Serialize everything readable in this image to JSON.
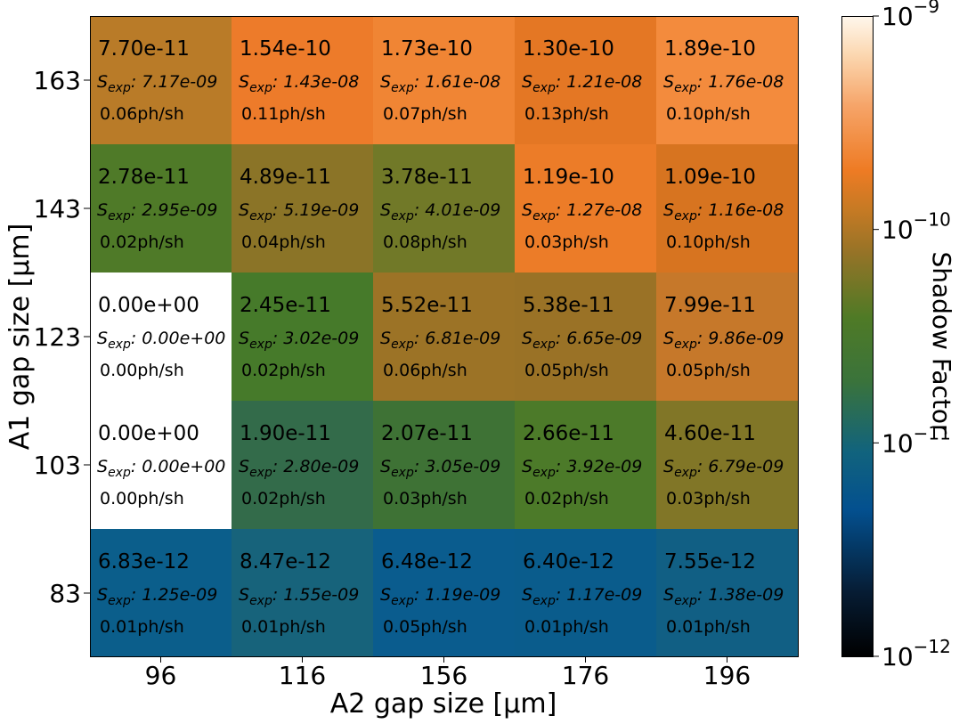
{
  "chart_data": {
    "type": "heatmap",
    "xlabel": "A2 gap size [µm]",
    "ylabel": "A1 gap size [µm]",
    "x_categories": [
      "96",
      "116",
      "156",
      "176",
      "196"
    ],
    "y_categories": [
      "163",
      "143",
      "123",
      "103",
      "83"
    ],
    "colorbar": {
      "label": "Shadow Factor",
      "scale": "log",
      "range": [
        1e-12,
        1e-09
      ],
      "tick_labels": [
        "10",
        "10",
        "10",
        "10"
      ],
      "tick_exponents": [
        "−9",
        "−10",
        "−11",
        "−12"
      ]
    },
    "sexp_prefix": "S",
    "sexp_subscript": "exp",
    "cells": [
      [
        {
          "value": "7.70e-11",
          "sexp": ": 7.17e-09",
          "rate": "0.06ph/sh",
          "color": "#b97b28"
        },
        {
          "value": "1.54e-10",
          "sexp": ": 1.43e-08",
          "rate": "0.11ph/sh",
          "color": "#ed7b2a"
        },
        {
          "value": "1.73e-10",
          "sexp": ": 1.61e-08",
          "rate": "0.07ph/sh",
          "color": "#f08534"
        },
        {
          "value": "1.30e-10",
          "sexp": ": 1.21e-08",
          "rate": "0.13ph/sh",
          "color": "#e47724"
        },
        {
          "value": "1.89e-10",
          "sexp": ": 1.76e-08",
          "rate": "0.10ph/sh",
          "color": "#f38b3d"
        }
      ],
      [
        {
          "value": "2.78e-11",
          "sexp": ": 2.95e-09",
          "rate": "0.02ph/sh",
          "color": "#4f7a28"
        },
        {
          "value": "4.89e-11",
          "sexp": ": 5.19e-09",
          "rate": "0.04ph/sh",
          "color": "#8b7427"
        },
        {
          "value": "3.78e-11",
          "sexp": ": 4.01e-09",
          "rate": "0.08ph/sh",
          "color": "#717928"
        },
        {
          "value": "1.19e-10",
          "sexp": ": 1.27e-08",
          "rate": "0.03ph/sh",
          "color": "#ec7c28"
        },
        {
          "value": "1.09e-10",
          "sexp": ": 1.16e-08",
          "rate": "0.10ph/sh",
          "color": "#d77420"
        }
      ],
      [
        {
          "value": "0.00e+00",
          "sexp": ": 0.00e+00",
          "rate": "0.00ph/sh",
          "color": "#ffffff"
        },
        {
          "value": "2.45e-11",
          "sexp": ": 3.02e-09",
          "rate": "0.02ph/sh",
          "color": "#467a2a"
        },
        {
          "value": "5.52e-11",
          "sexp": ": 6.81e-09",
          "rate": "0.06ph/sh",
          "color": "#9c7326"
        },
        {
          "value": "5.38e-11",
          "sexp": ": 6.65e-09",
          "rate": "0.05ph/sh",
          "color": "#9a7226"
        },
        {
          "value": "7.99e-11",
          "sexp": ": 9.86e-09",
          "rate": "0.05ph/sh",
          "color": "#c6782a"
        }
      ],
      [
        {
          "value": "0.00e+00",
          "sexp": ": 0.00e+00",
          "rate": "0.00ph/sh",
          "color": "#ffffff"
        },
        {
          "value": "1.90e-11",
          "sexp": ": 2.80e-09",
          "rate": "0.02ph/sh",
          "color": "#336b4a"
        },
        {
          "value": "2.07e-11",
          "sexp": ": 3.05e-09",
          "rate": "0.03ph/sh",
          "color": "#3e7235"
        },
        {
          "value": "2.66e-11",
          "sexp": ": 3.92e-09",
          "rate": "0.02ph/sh",
          "color": "#4c7a29"
        },
        {
          "value": "4.60e-11",
          "sexp": ": 6.79e-09",
          "rate": "0.03ph/sh",
          "color": "#817627"
        }
      ],
      [
        {
          "value": "6.83e-12",
          "sexp": ": 1.25e-09",
          "rate": "0.01ph/sh",
          "color": "#0b5e8b"
        },
        {
          "value": "8.47e-12",
          "sexp": ": 1.55e-09",
          "rate": "0.01ph/sh",
          "color": "#17637b"
        },
        {
          "value": "6.48e-12",
          "sexp": ": 1.19e-09",
          "rate": "0.05ph/sh",
          "color": "#0a5c8e"
        },
        {
          "value": "6.40e-12",
          "sexp": ": 1.17e-09",
          "rate": "0.01ph/sh",
          "color": "#0a5c8c"
        },
        {
          "value": "7.55e-12",
          "sexp": ": 1.38e-09",
          "rate": "0.01ph/sh",
          "color": "#115f84"
        }
      ]
    ]
  }
}
